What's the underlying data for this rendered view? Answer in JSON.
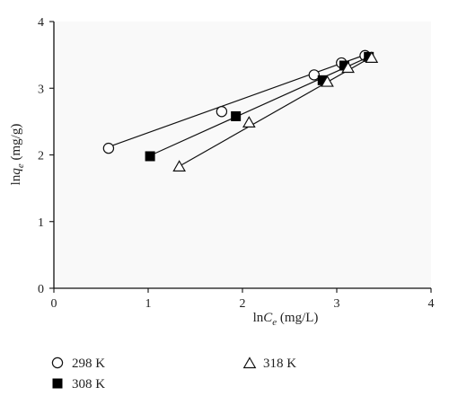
{
  "chart_data": {
    "type": "scatter",
    "title": "",
    "xlabel": {
      "prefix": "ln",
      "var": "C",
      "sub": "e",
      "suffix": " (mg/L)"
    },
    "ylabel": {
      "prefix": "ln",
      "var": "q",
      "sub": "e",
      "suffix": " (mg/g)"
    },
    "xlim": [
      0,
      4
    ],
    "ylim": [
      0,
      4
    ],
    "xticks": [
      "0",
      "1",
      "2",
      "3",
      "4"
    ],
    "yticks": [
      "0",
      "1",
      "2",
      "3",
      "4"
    ],
    "grid": false,
    "legend_position": "bottom",
    "series": [
      {
        "name": "298 K",
        "marker": "open-circle",
        "line": [
          [
            0.58,
            2.12
          ],
          [
            3.3,
            3.5
          ]
        ],
        "points": [
          [
            0.58,
            2.1
          ],
          [
            1.78,
            2.65
          ],
          [
            2.76,
            3.2
          ],
          [
            3.05,
            3.38
          ],
          [
            3.3,
            3.49
          ]
        ]
      },
      {
        "name": "308 K",
        "marker": "filled-square",
        "line": [
          [
            1.02,
            1.99
          ],
          [
            3.34,
            3.47
          ]
        ],
        "points": [
          [
            1.02,
            1.98
          ],
          [
            1.93,
            2.58
          ],
          [
            2.85,
            3.12
          ],
          [
            3.08,
            3.34
          ],
          [
            3.34,
            3.47
          ]
        ]
      },
      {
        "name": "318 K",
        "marker": "open-triangle",
        "line": [
          [
            1.33,
            1.83
          ],
          [
            3.37,
            3.47
          ]
        ],
        "points": [
          [
            1.33,
            1.82
          ],
          [
            2.07,
            2.48
          ],
          [
            2.9,
            3.09
          ],
          [
            3.12,
            3.3
          ],
          [
            3.37,
            3.45
          ]
        ]
      }
    ]
  }
}
